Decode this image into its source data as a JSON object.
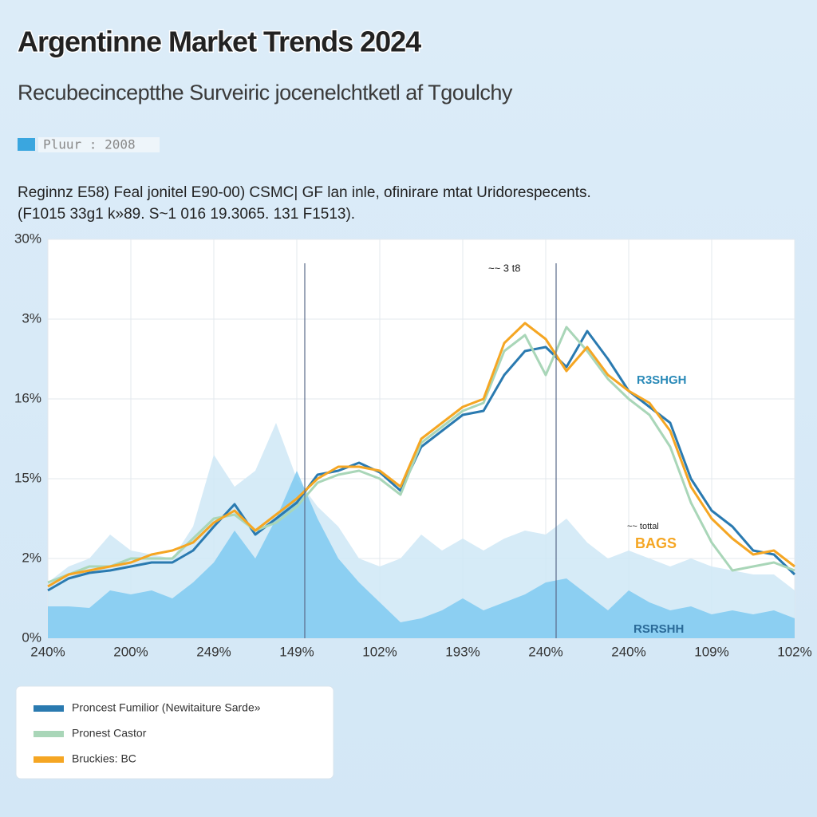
{
  "chart_data": {
    "type": "line",
    "title": "Argentinne Market Trends 2024",
    "subtitle": "Recubecinceptthe Surveiric jocenelchtketl af Tgoulchy",
    "top_legend": {
      "label": "Pluur : 2008",
      "color": "#3aa6df"
    },
    "description": [
      "Reginnz E58) Feal jonitel E90-00) CSMC| GF lan inle, ofinirare mtat Uridorespecents.",
      "(F1015 33g1 k»89. S~1 016 19.3065. 131 F1513)."
    ],
    "x": [
      0,
      1,
      2,
      3,
      4,
      5,
      6,
      7,
      8,
      9,
      10,
      11,
      12,
      13,
      14,
      15,
      16,
      17,
      18,
      19,
      20,
      21,
      22,
      23,
      24,
      25,
      26,
      27,
      28,
      29,
      30,
      31,
      32,
      33,
      34,
      35,
      36
    ],
    "xlim": [
      0,
      36
    ],
    "xticks": [
      {
        "value": 0,
        "label": "240%"
      },
      {
        "value": 4,
        "label": "200%"
      },
      {
        "value": 8,
        "label": "249%"
      },
      {
        "value": 12,
        "label": "149%"
      },
      {
        "value": 16,
        "label": "102%"
      },
      {
        "value": 20,
        "label": "193%"
      },
      {
        "value": 24,
        "label": "240%"
      },
      {
        "value": 28,
        "label": "240%"
      },
      {
        "value": 32,
        "label": "109%"
      },
      {
        "value": 36,
        "label": "102%"
      }
    ],
    "ylim": [
      0,
      5
    ],
    "yticks": [
      {
        "value": 0,
        "label": "0%"
      },
      {
        "value": 1,
        "label": "2%"
      },
      {
        "value": 2,
        "label": "15%"
      },
      {
        "value": 3,
        "label": "16%"
      },
      {
        "value": 4,
        "label": "3%"
      },
      {
        "value": 5,
        "label": "30%"
      }
    ],
    "grid": true,
    "areas": [
      {
        "color": "#cfe8f6",
        "values": [
          0.7,
          0.9,
          1.0,
          1.3,
          1.1,
          1.05,
          1.0,
          1.4,
          2.3,
          1.9,
          2.1,
          2.7,
          2.0,
          1.65,
          1.4,
          1.0,
          0.9,
          1.0,
          1.3,
          1.1,
          1.25,
          1.1,
          1.25,
          1.35,
          1.3,
          1.5,
          1.2,
          1.0,
          1.1,
          1.0,
          0.9,
          1.0,
          0.9,
          0.85,
          0.8,
          0.8,
          0.6
        ]
      },
      {
        "color": "#7fcaf1",
        "values": [
          0.4,
          0.4,
          0.38,
          0.6,
          0.55,
          0.6,
          0.5,
          0.7,
          0.95,
          1.35,
          1.0,
          1.5,
          2.1,
          1.5,
          1.0,
          0.7,
          0.45,
          0.2,
          0.25,
          0.35,
          0.5,
          0.35,
          0.45,
          0.55,
          0.7,
          0.75,
          0.55,
          0.35,
          0.6,
          0.45,
          0.35,
          0.4,
          0.3,
          0.35,
          0.3,
          0.35,
          0.25
        ]
      }
    ],
    "series": [
      {
        "name": "Proncest Fumilior (Newitaiture Sarde»",
        "color": "#2a7ab0",
        "values": [
          0.6,
          0.75,
          0.82,
          0.85,
          0.9,
          0.95,
          0.95,
          1.1,
          1.4,
          1.68,
          1.3,
          1.5,
          1.7,
          2.05,
          2.1,
          2.2,
          2.08,
          1.85,
          2.4,
          2.6,
          2.8,
          2.85,
          3.3,
          3.6,
          3.65,
          3.4,
          3.85,
          3.5,
          3.1,
          2.9,
          2.7,
          2.0,
          1.6,
          1.4,
          1.1,
          1.05,
          0.8
        ]
      },
      {
        "name": "Pronest Castor",
        "color": "#a9d6b8",
        "values": [
          0.7,
          0.8,
          0.9,
          0.9,
          1.0,
          1.0,
          1.0,
          1.25,
          1.5,
          1.55,
          1.35,
          1.45,
          1.65,
          1.95,
          2.05,
          2.1,
          2.0,
          1.8,
          2.45,
          2.65,
          2.85,
          2.95,
          3.6,
          3.8,
          3.3,
          3.9,
          3.6,
          3.25,
          3.0,
          2.8,
          2.4,
          1.7,
          1.2,
          0.85,
          0.9,
          0.95,
          0.85
        ]
      },
      {
        "name": "Bruckies: BC",
        "color": "#f5a623",
        "values": [
          0.65,
          0.8,
          0.85,
          0.9,
          0.95,
          1.05,
          1.1,
          1.2,
          1.45,
          1.6,
          1.35,
          1.55,
          1.75,
          2.0,
          2.15,
          2.15,
          2.1,
          1.9,
          2.5,
          2.7,
          2.9,
          3.0,
          3.7,
          3.95,
          3.75,
          3.35,
          3.65,
          3.3,
          3.1,
          2.95,
          2.6,
          1.9,
          1.5,
          1.25,
          1.05,
          1.1,
          0.9
        ]
      }
    ],
    "annotations": [
      "~~ 3 t8",
      "R3SHGH",
      "~~ tottal",
      "BAGS",
      "RSRSHH"
    ]
  }
}
